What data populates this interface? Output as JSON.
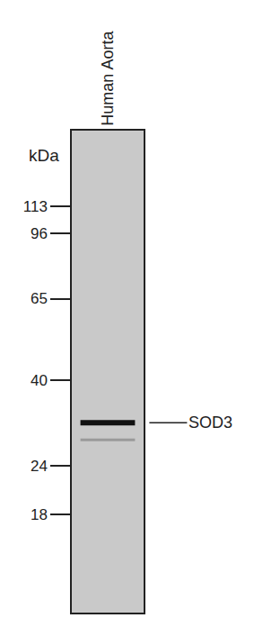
{
  "chart_data": {
    "type": "western_blot",
    "lanes": [
      "Human Aorta"
    ],
    "y_label": "kDa",
    "log": "y",
    "ylim": [
      10,
      177
    ],
    "yticks": [
      18,
      24,
      40,
      65,
      96,
      113
    ],
    "series": [
      {
        "name": "SOD3",
        "values": [
          31
        ],
        "color": "#111111"
      },
      {
        "values": [
          28
        ],
        "color": "#9a9a9a"
      }
    ]
  }
}
